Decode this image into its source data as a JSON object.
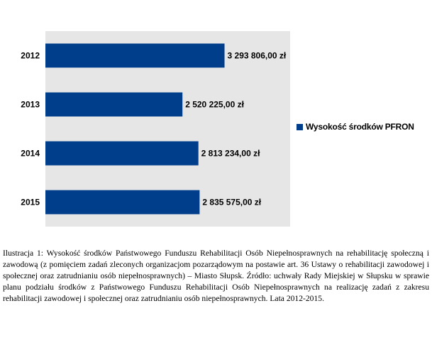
{
  "chart_data": {
    "type": "bar",
    "orientation": "horizontal",
    "categories": [
      "2012",
      "2013",
      "2014",
      "2015"
    ],
    "series": [
      {
        "name": "Wysokość środków PFRON",
        "values": [
          3293806.0,
          2520225.0,
          2813234.0,
          2835575.0
        ],
        "labels": [
          "3 293 806,00 zł",
          "2 520 225,00 zł",
          "2 813 234,00 zł",
          "2 835 575,00 zł"
        ]
      }
    ],
    "title": "",
    "xlabel": "",
    "ylabel": "",
    "xlim": [
      0,
      4500000
    ],
    "grid": false,
    "legend_position": "right",
    "bar_color": "#003E8C",
    "plot_background": "#E6E6E6"
  },
  "caption": "Ilustracja 1: Wysokość środków Państwowego Funduszu Rehabilitacji Osób Niepełnosprawnych na rehabilitację społeczną i zawodową (z pomięciem zadań zleconych organizacjom pozarządowym na postawie art. 36 Ustawy o rehabilitacji zawodowej i społecznej oraz zatrudnianiu osób niepełnosprawnych) – Miasto Słupsk. Źródło: uchwały Rady Miejskiej w Słupsku w sprawie planu podziału środków z Państwowego Funduszu Rehabilitacji Osób Niepełnosprawnych na realizację zadań z zakresu rehabilitacji zawodowej i społecznej oraz zatrudnianiu osób niepełnosprawnych. Lata 2012-2015."
}
